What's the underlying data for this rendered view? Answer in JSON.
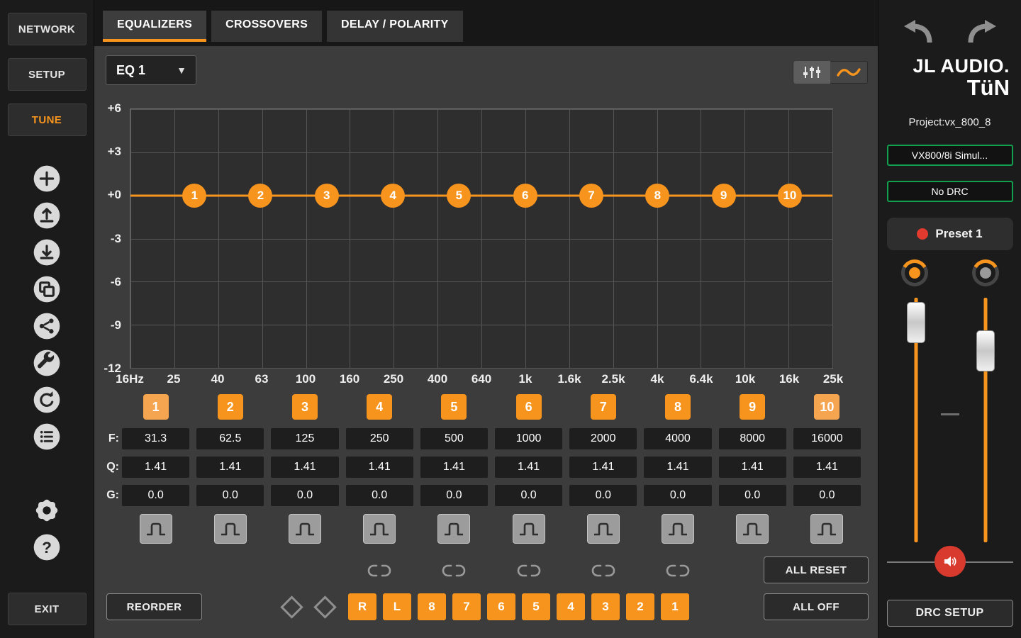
{
  "colors": {
    "accent": "#f7941d",
    "green": "#13a04e",
    "red": "#d83a2e"
  },
  "left_sidebar": {
    "nav": [
      {
        "label": "NETWORK",
        "active": false
      },
      {
        "label": "SETUP",
        "active": false
      },
      {
        "label": "TUNE",
        "active": true
      }
    ],
    "tools": [
      {
        "name": "add"
      },
      {
        "name": "upload"
      },
      {
        "name": "download"
      },
      {
        "name": "copy"
      },
      {
        "name": "share"
      },
      {
        "name": "wrench"
      },
      {
        "name": "undo"
      },
      {
        "name": "list"
      },
      {
        "name": "settings",
        "gap_before": true
      },
      {
        "name": "help"
      }
    ],
    "exit_label": "EXIT"
  },
  "tabs": [
    {
      "label": "EQUALIZERS",
      "active": true
    },
    {
      "label": "CROSSOVERS",
      "active": false
    },
    {
      "label": "DELAY / POLARITY",
      "active": false
    }
  ],
  "eq_panel": {
    "selector_label": "EQ 1",
    "graph": {
      "y_ticks": [
        "+6",
        "+3",
        "+0",
        "-3",
        "-6",
        "-9",
        "-12"
      ],
      "x_ticks": [
        "16Hz",
        "25",
        "40",
        "63",
        "100",
        "160",
        "250",
        "400",
        "640",
        "1k",
        "1.6k",
        "2.5k",
        "4k",
        "6.4k",
        "10k",
        "16k",
        "25k"
      ],
      "freq_min": 16,
      "freq_max": 25000,
      "db_max": 6,
      "db_min": -12
    },
    "row_labels": {
      "freq": "F:",
      "q": "Q:",
      "gain": "G:"
    },
    "bands": [
      {
        "num": "1",
        "freq": 31.3,
        "freq_label": "31.3",
        "q": "1.41",
        "gain": 0,
        "gain_label": "0.0",
        "marker_light": true
      },
      {
        "num": "2",
        "freq": 62.5,
        "freq_label": "62.5",
        "q": "1.41",
        "gain": 0,
        "gain_label": "0.0",
        "marker_light": false
      },
      {
        "num": "3",
        "freq": 125,
        "freq_label": "125",
        "q": "1.41",
        "gain": 0,
        "gain_label": "0.0",
        "marker_light": false
      },
      {
        "num": "4",
        "freq": 250,
        "freq_label": "250",
        "q": "1.41",
        "gain": 0,
        "gain_label": "0.0",
        "marker_light": false
      },
      {
        "num": "5",
        "freq": 500,
        "freq_label": "500",
        "q": "1.41",
        "gain": 0,
        "gain_label": "0.0",
        "marker_light": false
      },
      {
        "num": "6",
        "freq": 1000,
        "freq_label": "1000",
        "q": "1.41",
        "gain": 0,
        "gain_label": "0.0",
        "marker_light": false
      },
      {
        "num": "7",
        "freq": 2000,
        "freq_label": "2000",
        "q": "1.41",
        "gain": 0,
        "gain_label": "0.0",
        "marker_light": false
      },
      {
        "num": "8",
        "freq": 4000,
        "freq_label": "4000",
        "q": "1.41",
        "gain": 0,
        "gain_label": "0.0",
        "marker_light": false
      },
      {
        "num": "9",
        "freq": 8000,
        "freq_label": "8000",
        "q": "1.41",
        "gain": 0,
        "gain_label": "0.0",
        "marker_light": false
      },
      {
        "num": "10",
        "freq": 16000,
        "freq_label": "16000",
        "q": "1.41",
        "gain": 0,
        "gain_label": "0.0",
        "marker_light": true
      }
    ],
    "link_columns": [
      4,
      5,
      6,
      7,
      8
    ],
    "buttons": {
      "reorder": "REORDER",
      "all_reset": "ALL RESET",
      "all_off": "ALL OFF"
    },
    "channel_buttons": [
      "R",
      "L",
      "8",
      "7",
      "6",
      "5",
      "4",
      "3",
      "2",
      "1"
    ]
  },
  "right_sidebar": {
    "brand_line1": "JL AUDIO.",
    "brand_line2": "TüN",
    "project_label": "Project:vx_800_8",
    "device_button": "VX800/8i Simul...",
    "drc_button": "No DRC",
    "preset_label": "Preset 1",
    "drc_setup_label": "DRC SETUP"
  }
}
